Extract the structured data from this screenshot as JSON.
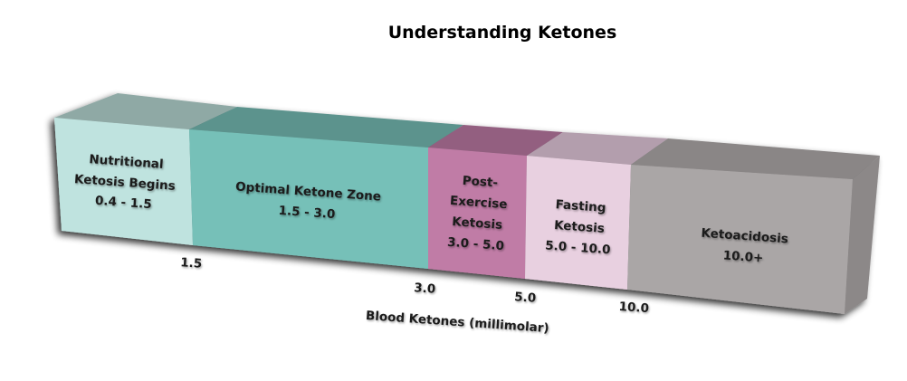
{
  "title": "Understanding Ketones",
  "axis_label": "Blood Ketones (millimolar)",
  "ticks": [
    "1.5",
    "3.0",
    "5.0",
    "10.0"
  ],
  "segments": [
    {
      "lines": [
        "Nutritional",
        "Ketosis Begins",
        "0.4 - 1.5"
      ],
      "color": "#bfe3df",
      "top_color": "#8fa9a5"
    },
    {
      "lines": [
        "Optimal Ketone Zone",
        "1.5 - 3.0"
      ],
      "color": "#76c0b8",
      "top_color": "#5b938d"
    },
    {
      "lines": [
        "Post-",
        "Exercise",
        "Ketosis",
        "3.0 - 5.0"
      ],
      "color": "#c07ca6",
      "top_color": "#935f80"
    },
    {
      "lines": [
        "Fasting",
        "Ketosis",
        "5.0 - 10.0"
      ],
      "color": "#e8d0e0",
      "top_color": "#b39ead"
    },
    {
      "lines": [
        "Ketoacidosis",
        "10.0+"
      ],
      "color": "#aaa6a6",
      "top_color": "#8a8686"
    }
  ],
  "side_color": "#8c8888"
}
